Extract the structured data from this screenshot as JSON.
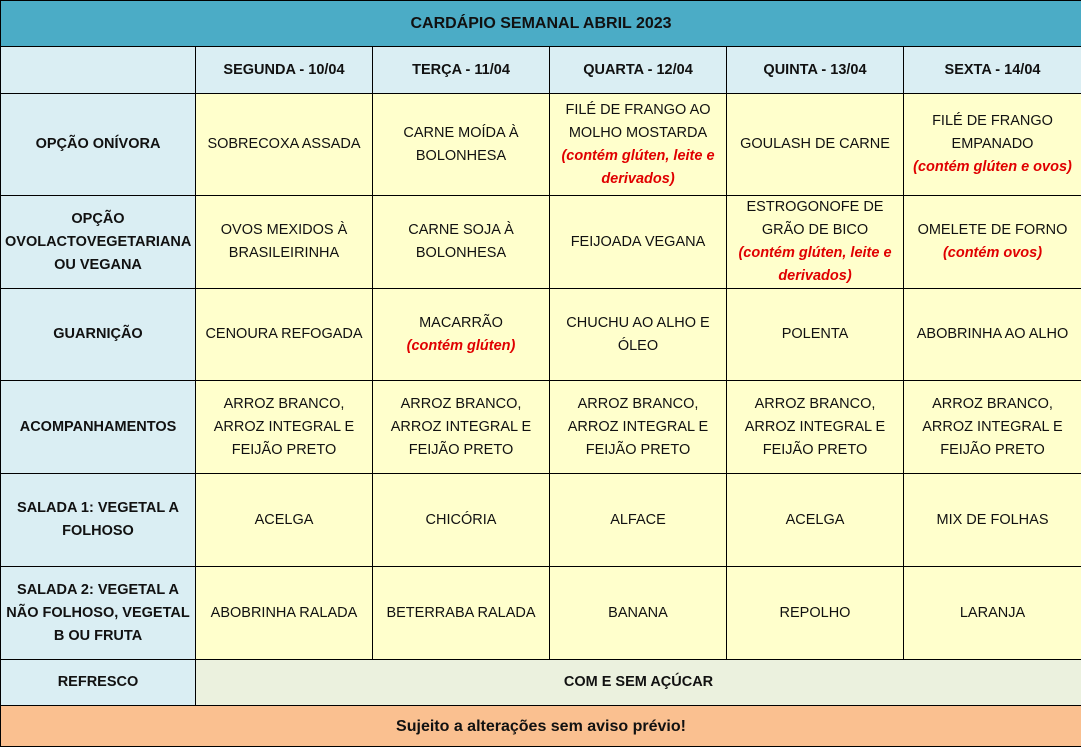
{
  "title": "CARDÁPIO SEMANAL ABRIL 2023",
  "days": [
    "SEGUNDA - 10/04",
    "TERÇA - 11/04",
    "QUARTA - 12/04",
    "QUINTA - 13/04",
    "SEXTA - 14/04"
  ],
  "rows": [
    {
      "label": "OPÇÃO ONÍVORA",
      "cells": [
        {
          "text": "SOBRECOXA ASSADA"
        },
        {
          "text": "CARNE MOÍDA À BOLONHESA"
        },
        {
          "text": "FILÉ DE FRANGO AO MOLHO MOSTARDA",
          "note": "(contém glúten, leite e derivados)"
        },
        {
          "text": "GOULASH DE CARNE"
        },
        {
          "text": "FILÉ DE FRANGO EMPANADO",
          "note": "(contém glúten e ovos)"
        }
      ]
    },
    {
      "label": "OPÇÃO OVOLACTOVEGETARIANA OU VEGANA",
      "cells": [
        {
          "text": "OVOS MEXIDOS À BRASILEIRINHA"
        },
        {
          "text": "CARNE SOJA À BOLONHESA"
        },
        {
          "text": "FEIJOADA VEGANA"
        },
        {
          "text": "ESTROGONOFE DE GRÃO DE BICO",
          "note": "(contém glúten, leite e derivados)"
        },
        {
          "text": "OMELETE DE FORNO",
          "note": "(contém ovos)"
        }
      ]
    },
    {
      "label": "GUARNIÇÃO",
      "cells": [
        {
          "text": "CENOURA REFOGADA"
        },
        {
          "text": "MACARRÃO",
          "note": "(contém glúten)"
        },
        {
          "text": "CHUCHU AO ALHO E ÓLEO"
        },
        {
          "text": "POLENTA"
        },
        {
          "text": "ABOBRINHA AO ALHO"
        }
      ]
    },
    {
      "label": "ACOMPANHAMENTOS",
      "cells": [
        {
          "text": "ARROZ BRANCO, ARROZ INTEGRAL E FEIJÃO PRETO"
        },
        {
          "text": "ARROZ BRANCO, ARROZ INTEGRAL E FEIJÃO PRETO"
        },
        {
          "text": "ARROZ BRANCO, ARROZ INTEGRAL E FEIJÃO PRETO"
        },
        {
          "text": "ARROZ BRANCO, ARROZ INTEGRAL E FEIJÃO PRETO"
        },
        {
          "text": "ARROZ BRANCO, ARROZ INTEGRAL E FEIJÃO PRETO"
        }
      ]
    },
    {
      "label": "SALADA 1: VEGETAL A FOLHOSO",
      "cells": [
        {
          "text": "ACELGA"
        },
        {
          "text": "CHICÓRIA"
        },
        {
          "text": "ALFACE"
        },
        {
          "text": "ACELGA"
        },
        {
          "text": "MIX DE FOLHAS"
        }
      ]
    },
    {
      "label": "SALADA 2: VEGETAL A NÃO FOLHOSO,   VEGETAL B OU FRUTA",
      "cells": [
        {
          "text": "ABOBRINHA RALADA"
        },
        {
          "text": "BETERRABA RALADA"
        },
        {
          "text": "BANANA"
        },
        {
          "text": "REPOLHO"
        },
        {
          "text": "LARANJA"
        }
      ]
    }
  ],
  "refresco": {
    "label": "REFRESCO",
    "value": "COM E SEM AÇÚCAR"
  },
  "footer": "Sujeito a alterações sem aviso prévio!",
  "colors": {
    "title_bg": "#4bacc6",
    "header_bg": "#daeef3",
    "cell_bg": "#ffffcc",
    "note_red": "#e00000",
    "footer_bg": "#fac090"
  }
}
